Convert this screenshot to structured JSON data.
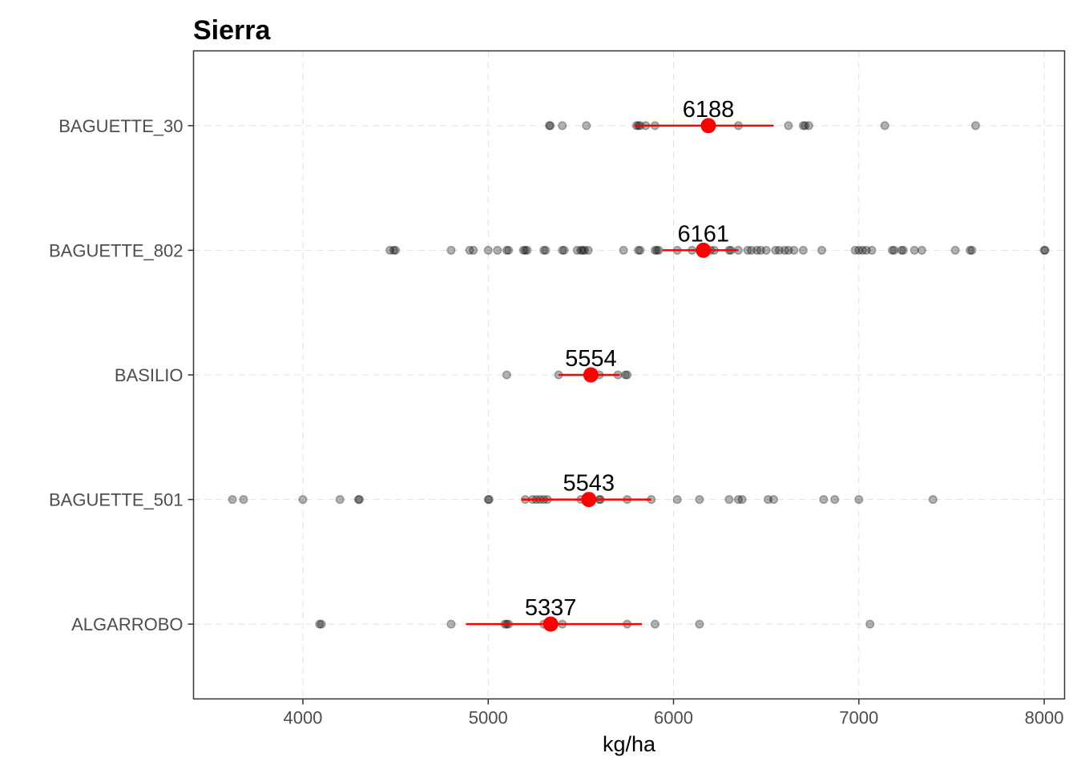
{
  "chart_data": {
    "type": "scatter",
    "title": "Sierra",
    "xlabel": "kg/ha",
    "ylabel": "",
    "xlim": [
      3410,
      8110
    ],
    "xticks": [
      4000,
      5000,
      6000,
      7000,
      8000
    ],
    "grid": true,
    "legend": "none",
    "categories": [
      "ALGARROBO",
      "BAGUETTE_501",
      "BASILIO",
      "BAGUETTE_802",
      "BAGUETTE_30"
    ],
    "groups": [
      {
        "name": "BAGUETTE_30",
        "mean": 6188,
        "label": "6188",
        "ci": [
          5790,
          6540
        ],
        "points": [
          5330,
          5335,
          5400,
          5530,
          5800,
          5810,
          5820,
          5850,
          5900,
          6350,
          6620,
          6700,
          6710,
          6730,
          7140,
          7630
        ]
      },
      {
        "name": "BAGUETTE_802",
        "mean": 6161,
        "label": "6161",
        "ci": [
          5940,
          6350
        ],
        "points": [
          4470,
          4490,
          4500,
          4800,
          4900,
          4920,
          5000,
          5050,
          5100,
          5110,
          5190,
          5200,
          5210,
          5300,
          5310,
          5400,
          5410,
          5480,
          5500,
          5510,
          5520,
          5540,
          5730,
          5810,
          5820,
          5900,
          5910,
          5920,
          6020,
          6100,
          6150,
          6200,
          6220,
          6300,
          6310,
          6350,
          6400,
          6420,
          6450,
          6470,
          6500,
          6550,
          6570,
          6600,
          6620,
          6650,
          6700,
          6800,
          6980,
          7000,
          7020,
          7040,
          7070,
          7180,
          7190,
          7230,
          7240,
          7300,
          7340,
          7520,
          7600,
          7610,
          8000,
          8005
        ]
      },
      {
        "name": "BASILIO",
        "mean": 5554,
        "label": "5554",
        "ci": [
          5380,
          5710
        ],
        "points": [
          5100,
          5380,
          5600,
          5700,
          5740,
          5750
        ]
      },
      {
        "name": "BAGUETTE_501",
        "mean": 5543,
        "label": "5543",
        "ci": [
          5180,
          5880
        ],
        "points": [
          3620,
          3680,
          4000,
          4200,
          4300,
          4305,
          5000,
          5005,
          5200,
          5240,
          5260,
          5280,
          5300,
          5320,
          5500,
          5600,
          5605,
          5750,
          5880,
          6020,
          6140,
          6300,
          6350,
          6370,
          6510,
          6540,
          6810,
          6870,
          7000,
          7400
        ]
      },
      {
        "name": "ALGARROBO",
        "mean": 5337,
        "label": "5337",
        "ci": [
          4880,
          5830
        ],
        "points": [
          4090,
          4100,
          4800,
          5090,
          5100,
          5110,
          5300,
          5320,
          5400,
          5750,
          5900,
          6140,
          7060
        ]
      }
    ]
  }
}
